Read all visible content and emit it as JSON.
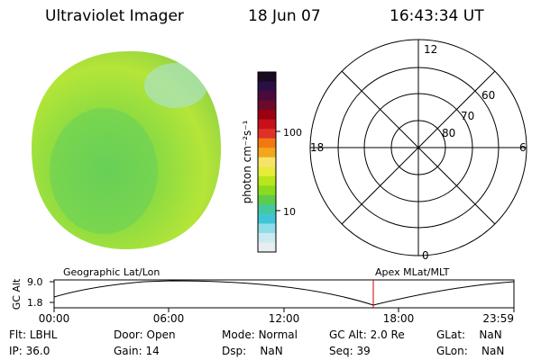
{
  "header": {
    "instrument": "Ultraviolet Imager",
    "date": "18 Jun 07",
    "time": "16:43:34 UT"
  },
  "colorbar": {
    "label": "photon cm⁻²s⁻¹",
    "ticks": [
      "100",
      "10"
    ],
    "colors_top_to_bottom": [
      "#1a0a20",
      "#2a0f45",
      "#4a0a3a",
      "#6b0a2a",
      "#9a0010",
      "#c8101a",
      "#e0302a",
      "#f07a10",
      "#f3a51e",
      "#f6e46a",
      "#e6ec3a",
      "#b8e61a",
      "#8ada20",
      "#5ccc4a",
      "#44c8a0",
      "#3fc6d6",
      "#8fdde6",
      "#c8eaf0",
      "#e8eef0"
    ]
  },
  "polar_plot": {
    "mlt_labels": {
      "top": "12",
      "right": "6",
      "bottom": "0",
      "left": "18"
    },
    "lat_labels": [
      "60",
      "70",
      "80"
    ]
  },
  "altitude_strip": {
    "left_label": "Geographic Lat/Lon",
    "right_label": "Apex MLat/MLT",
    "y_axis_label": "GC Alt",
    "y_ticks": [
      "9.0",
      "1.8"
    ],
    "x_ticks": [
      "00:00",
      "06:00",
      "12:00",
      "18:00",
      "23:59"
    ],
    "current_time_marker_color": "#cc0000"
  },
  "status": {
    "row1": [
      {
        "key": "Flt:",
        "value": "LBHL"
      },
      {
        "key": "Door:",
        "value": "Open"
      },
      {
        "key": "Mode:",
        "value": "Normal"
      },
      {
        "key": "GC Alt:",
        "value": "2.0 Re"
      },
      {
        "key": "GLat:",
        "value": "NaN"
      }
    ],
    "row2": [
      {
        "key": "IP:",
        "value": "36.0"
      },
      {
        "key": "Gain:",
        "value": "14"
      },
      {
        "key": "Dsp:",
        "value": "NaN"
      },
      {
        "key": "Seq:",
        "value": "39"
      },
      {
        "key": "GLon:",
        "value": "NaN"
      }
    ]
  }
}
